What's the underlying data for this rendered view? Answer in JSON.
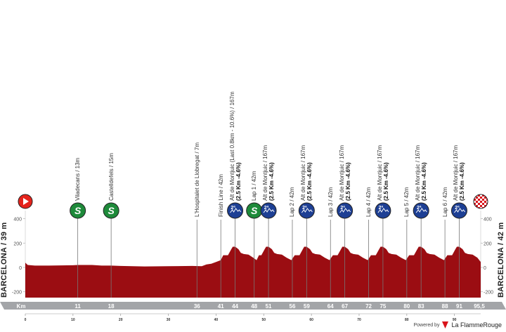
{
  "chart_data": {
    "type": "area",
    "xlabel": "Km",
    "ylim": [
      -245,
      600
    ],
    "xlim": [
      0,
      95.5
    ],
    "y_ticks": [
      "400",
      "200",
      "0",
      "-200"
    ],
    "y_tick_values": [
      400,
      200,
      0,
      -200
    ],
    "x_minor_ticks": [
      "0",
      "10",
      "20",
      "30",
      "40",
      "50",
      "60",
      "70",
      "80",
      "90"
    ],
    "start_label": "BARCELONA / 39 m",
    "finish_label": "BARCELONA / 42 m",
    "km_bar_label": "Km",
    "km_total_label": "95,5",
    "colors": {
      "profile": "#9b0d12",
      "climb": "#e3101b",
      "sprint": "#1e8a3a",
      "kom": "#1d3f94",
      "start": "#e4231c",
      "km_bar": "#a3a5a8"
    },
    "profile": [
      [
        0,
        39
      ],
      [
        0.5,
        20
      ],
      [
        2,
        15
      ],
      [
        5,
        15
      ],
      [
        10,
        18
      ],
      [
        11,
        20
      ],
      [
        14,
        20
      ],
      [
        16,
        15
      ],
      [
        18,
        15
      ],
      [
        20,
        12
      ],
      [
        25,
        8
      ],
      [
        30,
        10
      ],
      [
        35,
        12
      ],
      [
        37,
        10
      ],
      [
        38,
        25
      ],
      [
        39,
        30
      ],
      [
        40,
        45
      ],
      [
        41,
        60
      ],
      [
        41.5,
        100
      ],
      [
        42.5,
        100
      ],
      [
        43.2,
        150
      ],
      [
        43.5,
        170
      ],
      [
        44,
        170
      ],
      [
        44.7,
        150
      ],
      [
        45.2,
        120
      ],
      [
        45.8,
        110
      ],
      [
        46.8,
        105
      ],
      [
        47.8,
        80
      ],
      [
        48.5,
        60
      ],
      [
        49,
        100
      ],
      [
        49.5,
        100
      ],
      [
        50.2,
        150
      ],
      [
        50.5,
        170
      ],
      [
        51,
        170
      ],
      [
        51.7,
        150
      ],
      [
        52.2,
        120
      ],
      [
        52.8,
        110
      ],
      [
        53.8,
        105
      ],
      [
        54.8,
        80
      ],
      [
        55.8,
        60
      ],
      [
        56.5,
        100
      ],
      [
        57.5,
        100
      ],
      [
        58.2,
        150
      ],
      [
        58.5,
        170
      ],
      [
        59,
        170
      ],
      [
        59.7,
        150
      ],
      [
        60.2,
        120
      ],
      [
        60.8,
        110
      ],
      [
        61.8,
        105
      ],
      [
        62.8,
        80
      ],
      [
        63.8,
        60
      ],
      [
        64.5,
        100
      ],
      [
        65.5,
        100
      ],
      [
        66.2,
        150
      ],
      [
        66.5,
        170
      ],
      [
        67,
        170
      ],
      [
        67.7,
        150
      ],
      [
        68.2,
        120
      ],
      [
        68.8,
        110
      ],
      [
        69.8,
        105
      ],
      [
        70.8,
        80
      ],
      [
        71.8,
        60
      ],
      [
        72.5,
        100
      ],
      [
        73.5,
        100
      ],
      [
        74.2,
        150
      ],
      [
        74.5,
        170
      ],
      [
        75,
        170
      ],
      [
        75.7,
        150
      ],
      [
        76.2,
        120
      ],
      [
        76.8,
        110
      ],
      [
        77.8,
        105
      ],
      [
        78.8,
        80
      ],
      [
        79.8,
        60
      ],
      [
        80.5,
        100
      ],
      [
        81.5,
        100
      ],
      [
        82.2,
        150
      ],
      [
        82.5,
        170
      ],
      [
        83,
        170
      ],
      [
        83.7,
        150
      ],
      [
        84.2,
        120
      ],
      [
        84.8,
        110
      ],
      [
        85.8,
        105
      ],
      [
        86.8,
        80
      ],
      [
        87.8,
        60
      ],
      [
        88.5,
        100
      ],
      [
        89.5,
        100
      ],
      [
        90.2,
        150
      ],
      [
        90.5,
        170
      ],
      [
        91,
        170
      ],
      [
        91.7,
        150
      ],
      [
        92.2,
        120
      ],
      [
        92.8,
        110
      ],
      [
        93.8,
        105
      ],
      [
        94.8,
        80
      ],
      [
        95.5,
        45
      ]
    ],
    "markers": [
      {
        "km": 11,
        "km_label": "11",
        "label": "Viladecans / 13m",
        "sub": "",
        "icon": "sprint",
        "icon_text": "S"
      },
      {
        "km": 18,
        "km_label": "18",
        "label": "Castelldefels / 15m",
        "sub": "",
        "icon": "sprint",
        "icon_text": "S"
      },
      {
        "km": 36,
        "km_label": "36",
        "label": "L'Hospitalet de Llobregat / 7m",
        "sub": "",
        "icon": "",
        "icon_text": ""
      },
      {
        "km": 41,
        "km_label": "41",
        "label": "Finish Line / 42m",
        "sub": "",
        "icon": "",
        "icon_text": ""
      },
      {
        "km": 44,
        "km_label": "44",
        "label": "Alt de Montjuic (Last 0.8km - 10.6%) / 167m",
        "sub": "(2.5 Km -4.6%)",
        "icon": "kom",
        "icon_text": "2ª"
      },
      {
        "km": 48,
        "km_label": "48",
        "label": "Lap 1 / 42m",
        "sub": "",
        "icon": "sprint",
        "icon_text": "S"
      },
      {
        "km": 51,
        "km_label": "51",
        "label": "Alt de Montjuic / 167m",
        "sub": "(2.5 Km -4.6%)",
        "icon": "kom",
        "icon_text": "2ª"
      },
      {
        "km": 56,
        "km_label": "56",
        "label": "Lap 2 / 42m",
        "sub": "",
        "icon": "",
        "icon_text": ""
      },
      {
        "km": 59,
        "km_label": "59",
        "label": "Alt de Montjuic / 167m",
        "sub": "(2.5 Km -4.6%)",
        "icon": "kom",
        "icon_text": "2ª"
      },
      {
        "km": 64,
        "km_label": "64",
        "label": "Lap 3 / 42m",
        "sub": "",
        "icon": "",
        "icon_text": ""
      },
      {
        "km": 67,
        "km_label": "67",
        "label": "Alt de Montjuic / 167m",
        "sub": "(2.5 Km -4.6%)",
        "icon": "kom",
        "icon_text": "2ª"
      },
      {
        "km": 72,
        "km_label": "72",
        "label": "Lap 4 / 42m",
        "sub": "",
        "icon": "",
        "icon_text": ""
      },
      {
        "km": 75,
        "km_label": "75",
        "label": "Alt de Montjuic / 167m",
        "sub": "(2.5 Km -4.6%)",
        "icon": "kom",
        "icon_text": "2ª"
      },
      {
        "km": 80,
        "km_label": "80",
        "label": "Lap 5 / 42m",
        "sub": "",
        "icon": "",
        "icon_text": ""
      },
      {
        "km": 83,
        "km_label": "83",
        "label": "Alt de Montjuic / 167m",
        "sub": "(2.5 Km -4.6%)",
        "icon": "kom",
        "icon_text": "2ª"
      },
      {
        "km": 88,
        "km_label": "88",
        "label": "Lap 6 / 42m",
        "sub": "",
        "icon": "",
        "icon_text": ""
      },
      {
        "km": 91,
        "km_label": "91",
        "label": "Alt de Montjuic / 167m",
        "sub": "(2.5 Km -4.6%)",
        "icon": "kom",
        "icon_text": "2ª"
      }
    ]
  },
  "footer": {
    "powered_by": "Powered by",
    "brand": "La FlammeRouge"
  }
}
